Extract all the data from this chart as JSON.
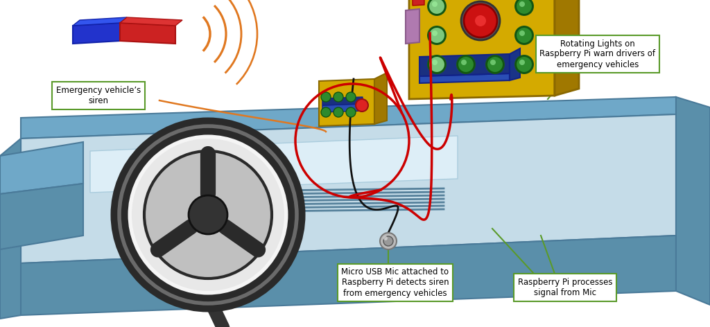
{
  "background_color": "#ffffff",
  "label_box_color": "#ffffff",
  "label_box_edge": "#5a9a2a",
  "label_font_size": 8.5,
  "label1": "Emergency vehicle’s\nsiren",
  "label2": "Rotating Lights on\nRaspberry Pi warn drivers of\nemergency vehicles",
  "label3": "Micro USB Mic attached to\nRaspberry Pi detects siren\nfrom emergency vehicles",
  "label4": "Raspberry Pi processes\nsignal from Mic",
  "dash_top_color": "#6fa8c8",
  "dash_face_color": "#c5dce8",
  "dash_front_color": "#5a8faa",
  "dash_left_color": "#5a8faa",
  "dash_right_color": "#5a8faa",
  "pi_yellow": "#d4aa00",
  "pi_yellow_dark": "#a07800",
  "pi_yellow_side": "#b89200",
  "blue_block": "#2a4db5",
  "blue_block_dark": "#1a3080",
  "orange_color": "#e07820",
  "red_circle_color": "#cc0000",
  "green_led": "#2d8a2d",
  "light_green_led": "#7dc87d",
  "wheel_dark": "#2a2a2a",
  "wheel_white": "#f0f0f0",
  "magnet_blue": "#2233cc",
  "magnet_red": "#cc2222",
  "purple_color": "#b07ab0",
  "red_comp_color": "#cc2222",
  "gray_metal": "#888888",
  "vent_color": "#3a6a88",
  "cable_color": "#111111"
}
